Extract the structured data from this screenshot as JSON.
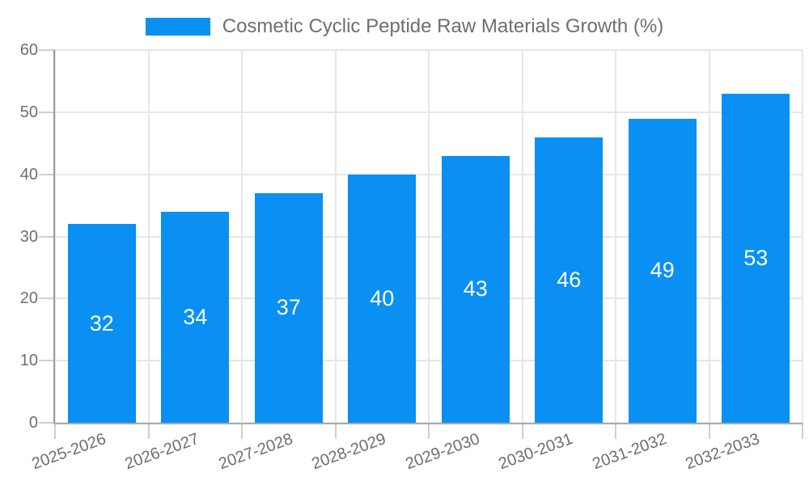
{
  "chart_data": {
    "type": "bar",
    "title": "Cosmetic Cyclic Peptide Raw Materials Growth (%)",
    "categories": [
      "2025-2026",
      "2026-2027",
      "2027-2028",
      "2028-2029",
      "2029-2030",
      "2030-2031",
      "2031-2032",
      "2032-2033"
    ],
    "values": [
      32,
      34,
      37,
      40,
      43,
      46,
      49,
      53
    ],
    "xlabel": "",
    "ylabel": "",
    "ylim": [
      0,
      60
    ],
    "ytick_step": 10,
    "yticks": [
      0,
      10,
      20,
      30,
      40,
      50,
      60
    ],
    "grid": true,
    "legend_position": "top-center",
    "bar_label_position": "inside-center",
    "colors": {
      "bar": "#0990f2",
      "bar_value_label": "#ffffff",
      "axis_text": "#6e6e6e",
      "grid_line": "#e6e6e6",
      "tick_mark": "#cfcfcf",
      "y_axis_line": "#9c9c9c",
      "x_axis_line": "#ababab",
      "background": "#ffffff"
    }
  },
  "legend": {
    "label": "Cosmetic Cyclic Peptide Raw Materials Growth (%)",
    "swatch_color": "#0990f2"
  }
}
